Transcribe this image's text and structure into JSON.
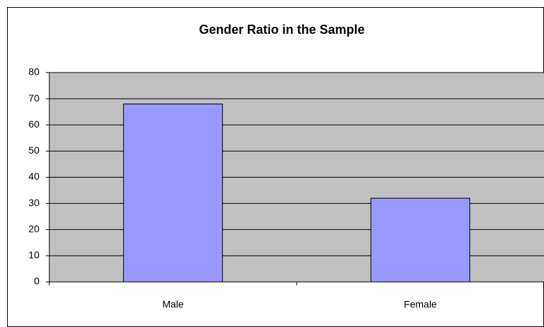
{
  "chart_data": {
    "type": "bar",
    "title": "Gender Ratio in the Sample",
    "categories": [
      "Male",
      "Female"
    ],
    "values": [
      68,
      32
    ],
    "color": "#9999ff",
    "ylim": [
      0,
      80
    ],
    "yticks": [
      0,
      10,
      20,
      30,
      40,
      50,
      60,
      70,
      80
    ],
    "grid": true
  }
}
